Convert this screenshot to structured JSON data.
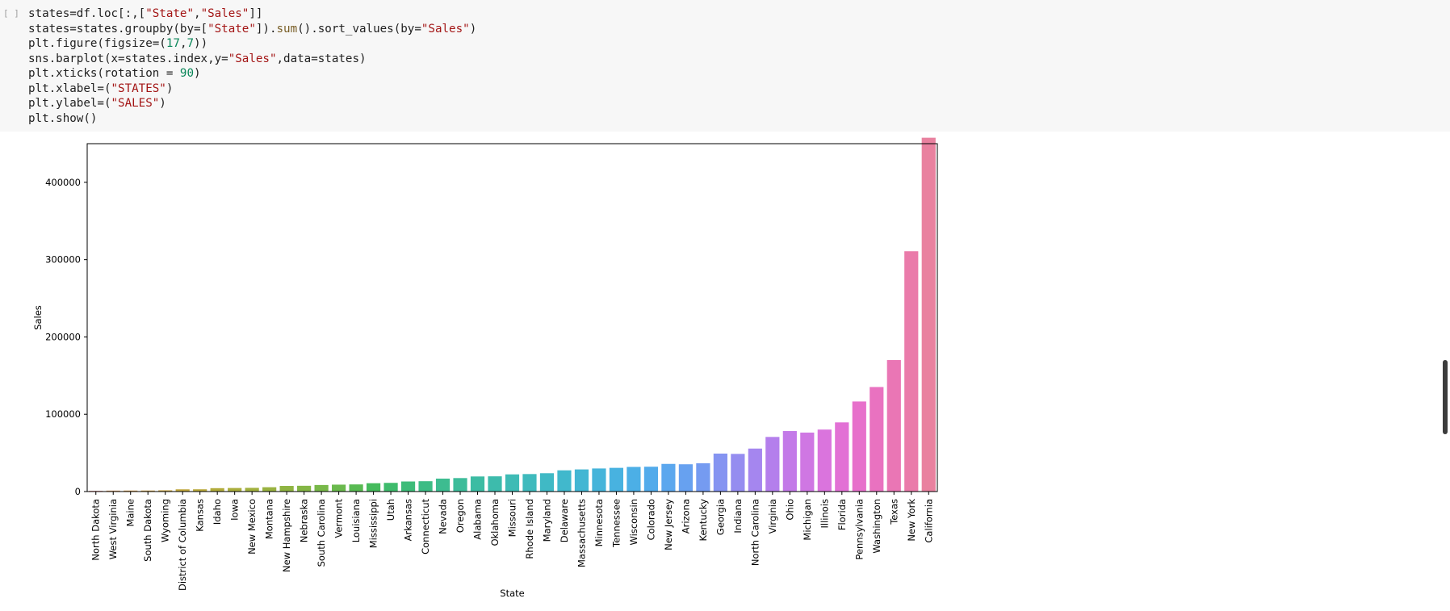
{
  "cell": {
    "prompt": "[ ]",
    "lines": [
      [
        {
          "t": "states=df.loc[:,[",
          "c": ""
        },
        {
          "t": "\"State\"",
          "c": "s"
        },
        {
          "t": ",",
          "c": ""
        },
        {
          "t": "\"Sales\"",
          "c": "s"
        },
        {
          "t": "]]",
          "c": ""
        }
      ],
      [
        {
          "t": "states=states.groupby(by=[",
          "c": ""
        },
        {
          "t": "\"State\"",
          "c": "s"
        },
        {
          "t": "]).",
          "c": ""
        },
        {
          "t": "sum",
          "c": "f"
        },
        {
          "t": "().sort_values(by=",
          "c": ""
        },
        {
          "t": "\"Sales\"",
          "c": "s"
        },
        {
          "t": ")",
          "c": ""
        }
      ],
      [
        {
          "t": "plt.figure(figsize=(",
          "c": ""
        },
        {
          "t": "17",
          "c": "n"
        },
        {
          "t": ",",
          "c": ""
        },
        {
          "t": "7",
          "c": "n"
        },
        {
          "t": "))",
          "c": ""
        }
      ],
      [
        {
          "t": "sns.barplot(x=states.index,y=",
          "c": ""
        },
        {
          "t": "\"Sales\"",
          "c": "s"
        },
        {
          "t": ",data=states)",
          "c": ""
        }
      ],
      [
        {
          "t": "plt.xticks(rotation = ",
          "c": ""
        },
        {
          "t": "90",
          "c": "n"
        },
        {
          "t": ")",
          "c": ""
        }
      ],
      [
        {
          "t": "plt.xlabel=(",
          "c": ""
        },
        {
          "t": "\"STATES\"",
          "c": "s"
        },
        {
          "t": ")",
          "c": ""
        }
      ],
      [
        {
          "t": "plt.ylabel=(",
          "c": ""
        },
        {
          "t": "\"SALES\"",
          "c": "s"
        },
        {
          "t": ")",
          "c": ""
        }
      ],
      [
        {
          "t": "plt.show()",
          "c": ""
        }
      ]
    ]
  },
  "chart_data": {
    "type": "bar",
    "xlabel": "State",
    "ylabel": "Sales",
    "ylim": [
      0,
      450000
    ],
    "yticks": [
      0,
      100000,
      200000,
      300000,
      400000
    ],
    "grid": false,
    "categories": [
      "North Dakota",
      "West Virginia",
      "Maine",
      "South Dakota",
      "Wyoming",
      "District of Columbia",
      "Kansas",
      "Idaho",
      "Iowa",
      "New Mexico",
      "Montana",
      "New Hampshire",
      "Nebraska",
      "South Carolina",
      "Vermont",
      "Louisiana",
      "Mississippi",
      "Utah",
      "Arkansas",
      "Connecticut",
      "Nevada",
      "Oregon",
      "Alabama",
      "Oklahoma",
      "Missouri",
      "Rhode Island",
      "Maryland",
      "Delaware",
      "Massachusetts",
      "Minnesota",
      "Tennessee",
      "Wisconsin",
      "Colorado",
      "New Jersey",
      "Arizona",
      "Kentucky",
      "Georgia",
      "Indiana",
      "North Carolina",
      "Virginia",
      "Ohio",
      "Michigan",
      "Illinois",
      "Florida",
      "Pennsylvania",
      "Washington",
      "Texas",
      "New York",
      "California"
    ],
    "values": [
      920,
      1210,
      1270,
      1320,
      1600,
      2870,
      2910,
      4380,
      4580,
      4780,
      5590,
      7290,
      7460,
      8480,
      8930,
      9220,
      10770,
      11220,
      13030,
      13380,
      16730,
      17430,
      19510,
      19680,
      22210,
      22630,
      23710,
      27450,
      28630,
      29860,
      30660,
      31850,
      32110,
      35760,
      35280,
      36590,
      49100,
      48710,
      55600,
      70640,
      78260,
      76270,
      80170,
      89470,
      116510,
      135210,
      170130,
      310880,
      457690
    ],
    "colors": [
      "#e68f8a",
      "#d99a5f",
      "#d89c4a",
      "#d09f43",
      "#c9a23e",
      "#c1a63b",
      "#b9a93b",
      "#b2ac3b",
      "#aaae3c",
      "#a2b13e",
      "#99b240",
      "#8fb442",
      "#84b645",
      "#78b849",
      "#6ab94d",
      "#58ba52",
      "#45bb5c",
      "#3ebb6c",
      "#3dbc79",
      "#3dbc85",
      "#3dbc90",
      "#3dbc9a",
      "#3cbca3",
      "#3dbbac",
      "#3ebbb5",
      "#3fbabd",
      "#40b9c5",
      "#41b8cc",
      "#43b6d3",
      "#45b4da",
      "#48b2e0",
      "#4cafe6",
      "#52abeb",
      "#5ba7ee",
      "#67a1f0",
      "#759bf1",
      "#8594f1",
      "#958df0",
      "#a586ef",
      "#b47fec",
      "#c37ae8",
      "#cf77e3",
      "#da74dd",
      "#e271d5",
      "#e770cb",
      "#e972c0",
      "#ea76b5",
      "#ea7baa",
      "#e9819f"
    ]
  }
}
